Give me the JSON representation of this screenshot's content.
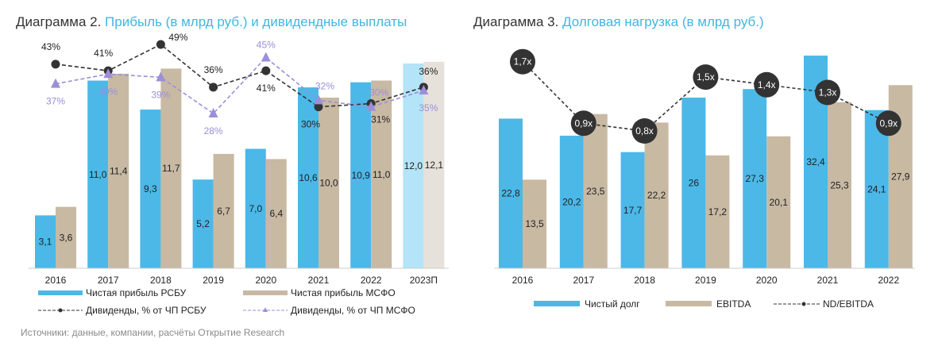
{
  "chart_data": [
    {
      "type": "bar",
      "title_prefix": "Диаграмма 2.",
      "title": "Прибыль (в млрд руб.) и дивидендные выплаты",
      "categories": [
        "2016",
        "2017",
        "2018",
        "2019",
        "2020",
        "2021",
        "2022",
        "2023П"
      ],
      "series": [
        {
          "name": "Чистая прибыль РСБУ",
          "type": "bar",
          "color": "#4bb8e8",
          "forecast_color": "#b3e4f7",
          "values": [
            3.1,
            11.0,
            9.3,
            5.2,
            7.0,
            10.6,
            10.9,
            12.0
          ],
          "labels": [
            "3,1",
            "11,0",
            "9,3",
            "5,2",
            "7,0",
            "10,6",
            "10,9",
            "12,0"
          ]
        },
        {
          "name": "Чистая прибыль МСФО",
          "type": "bar",
          "color": "#c8b9a3",
          "forecast_color": "#e6e1da",
          "values": [
            3.6,
            11.4,
            11.7,
            6.7,
            6.4,
            10.0,
            11.0,
            12.1
          ],
          "labels": [
            "3,6",
            "11,4",
            "11,7",
            "6,7",
            "6,4",
            "10,0",
            "11,0",
            "12,1"
          ]
        },
        {
          "name": "Дивиденды, % от ЧП РСБУ",
          "type": "line",
          "color": "#333333",
          "marker": "circle",
          "values": [
            43,
            41,
            49,
            36,
            41,
            30,
            31,
            36
          ],
          "labels": [
            "43%",
            "41%",
            "49%",
            "36%",
            "41%",
            "30%",
            "31%",
            "36%"
          ]
        },
        {
          "name": "Дивиденды, % от ЧП МСФО",
          "type": "line",
          "color": "#9b8fd9",
          "marker": "triangle",
          "values": [
            37,
            40,
            39,
            28,
            45,
            32,
            30,
            35
          ],
          "labels": [
            "37%",
            "40%",
            "39%",
            "28%",
            "45%",
            "32%",
            "30%",
            "35%"
          ]
        }
      ],
      "legend": "bottom",
      "source": "Источники: данные, компании, расчёты Открытие Research"
    },
    {
      "type": "bar",
      "title_prefix": "Диаграмма 3.",
      "title": "Долговая нагрузка (в млрд руб.)",
      "categories": [
        "2016",
        "2017",
        "2018",
        "2019",
        "2020",
        "2021",
        "2022"
      ],
      "series": [
        {
          "name": "Чистый долг",
          "type": "bar",
          "color": "#4bb8e8",
          "values": [
            22.8,
            20.2,
            17.7,
            26,
            27.3,
            32.4,
            24.1
          ],
          "labels": [
            "22,8",
            "20,2",
            "17,7",
            "26",
            "27,3",
            "32,4",
            "24,1"
          ]
        },
        {
          "name": "EBITDA",
          "type": "bar",
          "color": "#c8b9a3",
          "values": [
            13.5,
            23.5,
            22.2,
            17.2,
            20.1,
            25.3,
            27.9
          ],
          "labels": [
            "13,5",
            "23,5",
            "22,2",
            "17,2",
            "20,1",
            "25,3",
            "27,9"
          ]
        },
        {
          "name": "ND/EBITDA",
          "type": "line",
          "color": "#333333",
          "marker": "circle",
          "values": [
            1.7,
            0.9,
            0.8,
            1.5,
            1.4,
            1.3,
            0.9
          ],
          "labels": [
            "1,7x",
            "0,9x",
            "0,8x",
            "1,5x",
            "1,4x",
            "1,3x",
            "0,9x"
          ]
        }
      ],
      "legend": "bottom"
    }
  ]
}
